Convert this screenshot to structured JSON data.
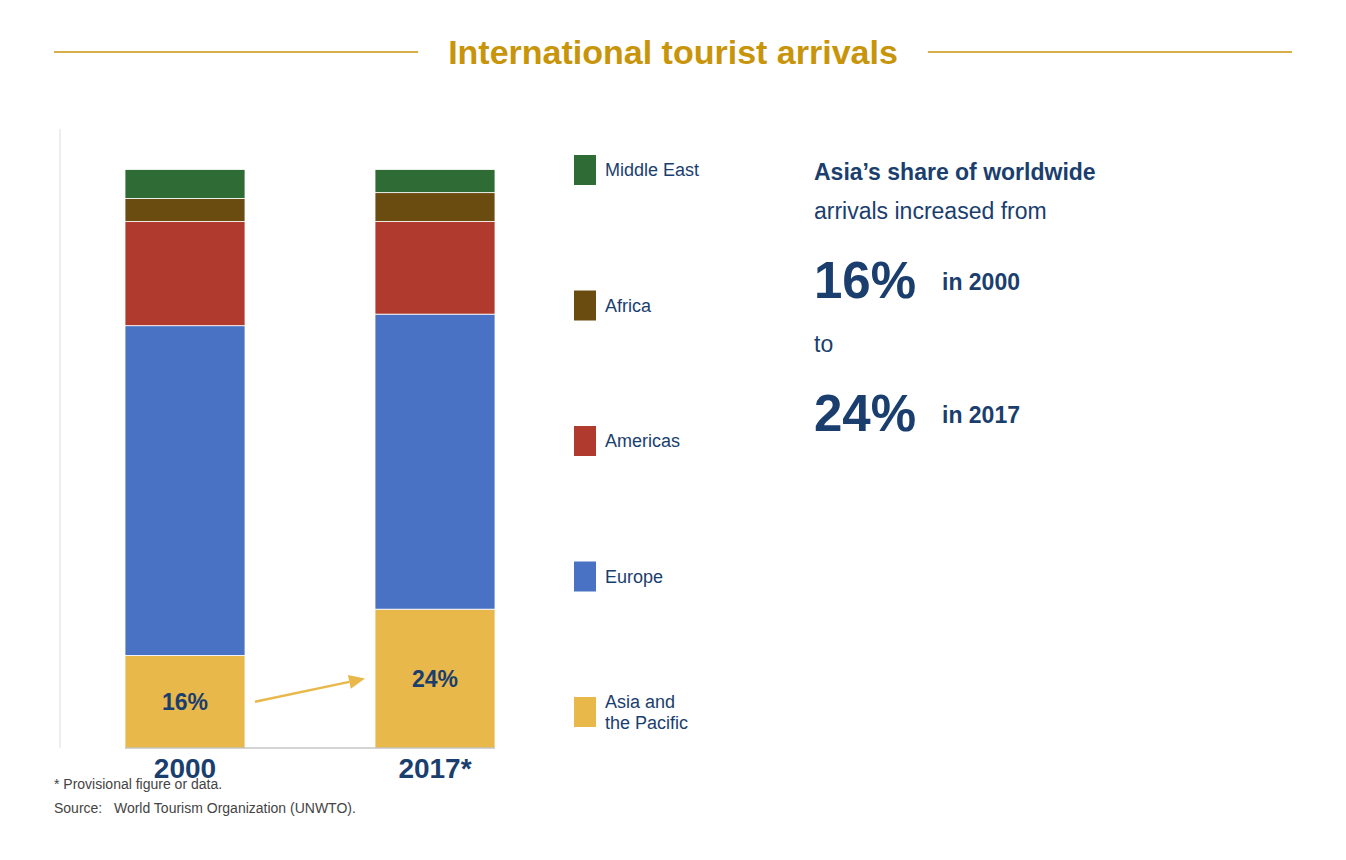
{
  "chart_data": {
    "type": "bar",
    "stacked": true,
    "title": "International tourist arrivals",
    "categories": [
      "2000",
      "2017*"
    ],
    "series": [
      {
        "name": "Asia and\nthe Pacific",
        "color": "#E8B84B",
        "values": [
          16,
          24
        ],
        "data_labels": true,
        "value_labels": [
          "16%",
          "24%"
        ]
      },
      {
        "name": "Europe",
        "color": "#4A72C4",
        "values": [
          57,
          51
        ]
      },
      {
        "name": "Americas",
        "color": "#B03A2E",
        "values": [
          18,
          16
        ]
      },
      {
        "name": "Africa",
        "color": "#6B4C10",
        "values": [
          4,
          5
        ]
      },
      {
        "name": "Middle East",
        "color": "#2E6B35",
        "values": [
          5,
          4
        ]
      }
    ],
    "ylim": [
      0,
      107
    ],
    "tick_labels": "x",
    "grid": false,
    "legend": "right",
    "annotations": [
      "Asia’s share of worldwide",
      "arrivals increased from",
      "16%",
      "in 2000",
      "to",
      "24%",
      "in 2017"
    ],
    "footnotes": [
      "* Provisional figure or data.",
      "Source:   World Tourism Organization (UNWTO)."
    ]
  }
}
